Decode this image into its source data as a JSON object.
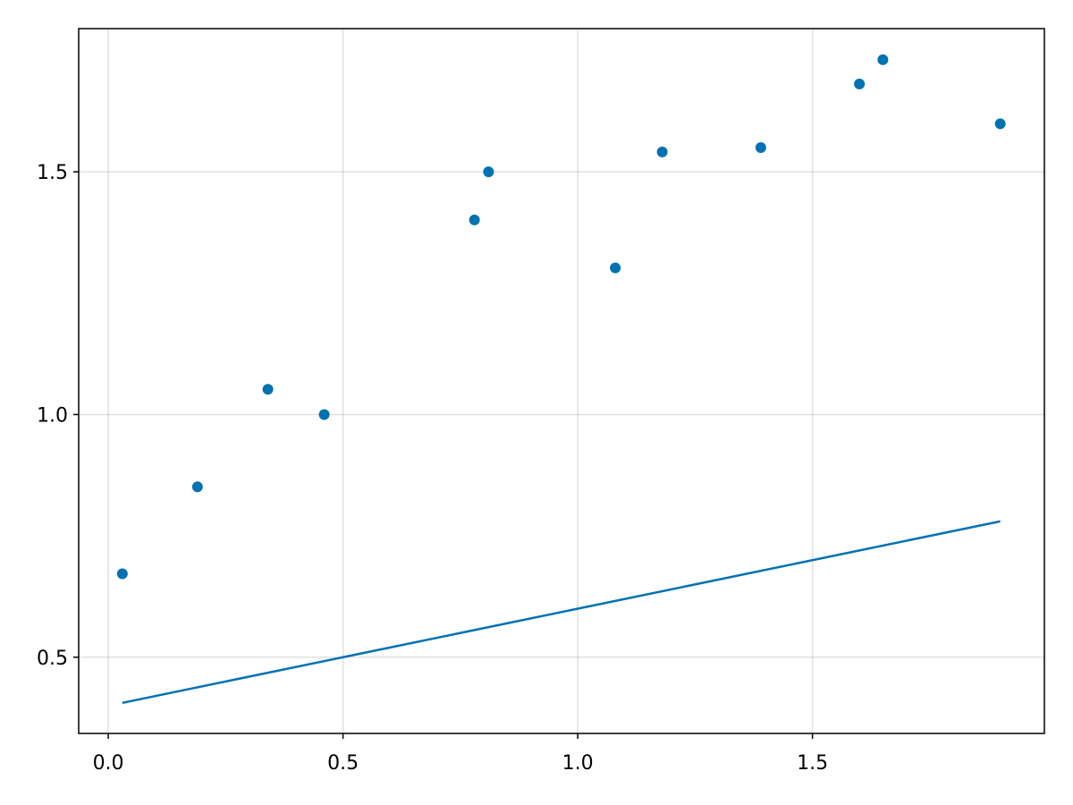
{
  "chart_data": {
    "type": "scatter",
    "series": [
      {
        "type": "scatter",
        "color": "#0072b2",
        "x": [
          0.03,
          0.19,
          0.34,
          0.46,
          0.78,
          0.81,
          1.08,
          1.18,
          1.39,
          1.6,
          1.65,
          1.9
        ],
        "values": [
          0.672,
          0.851,
          1.052,
          1.0,
          1.401,
          1.5,
          1.302,
          1.541,
          1.55,
          1.681,
          1.731,
          1.599
        ]
      },
      {
        "type": "line",
        "color": "#0072b2",
        "x": [
          0.03,
          1.9
        ],
        "values": [
          0.406,
          0.78
        ]
      }
    ],
    "xlim": [
      -0.063,
      1.994
    ],
    "ylim": [
      0.343,
      1.795
    ],
    "xticks": [
      {
        "value": 0,
        "label": "0.0"
      },
      0.5,
      {
        "value": 1,
        "label": "1.0"
      },
      1.5
    ],
    "yticks": [
      0.5,
      {
        "value": 1,
        "label": "1.0"
      },
      1.5
    ],
    "grid": true
  }
}
